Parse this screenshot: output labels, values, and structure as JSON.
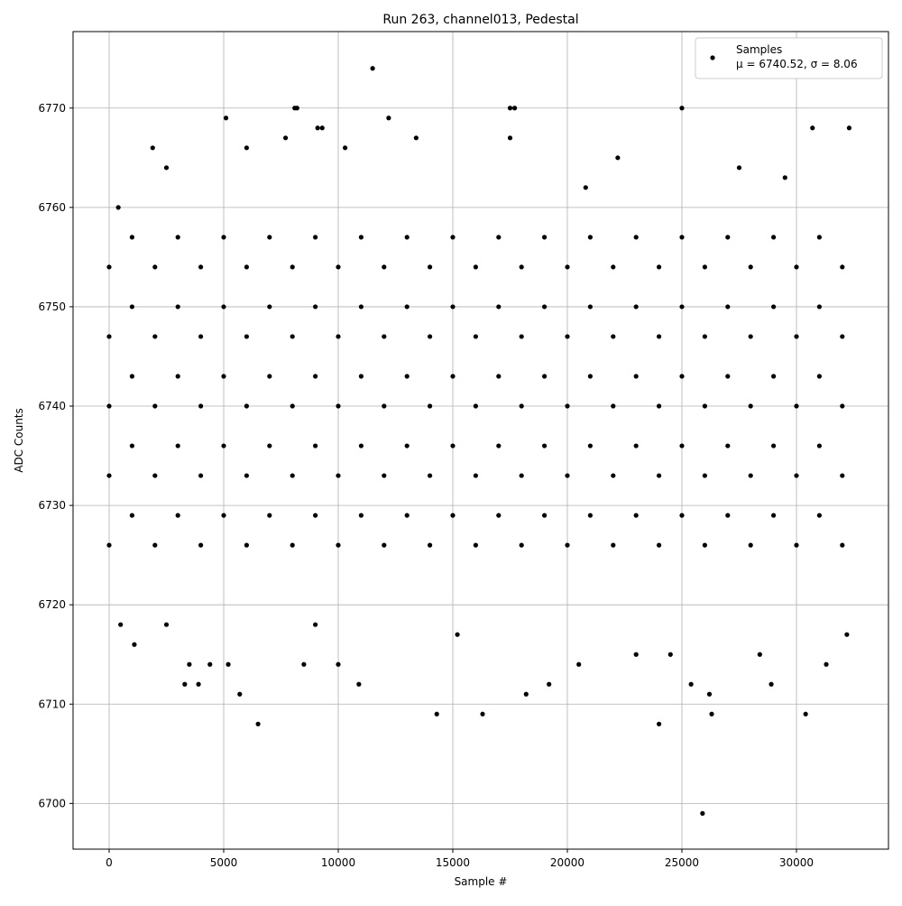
{
  "chart_data": {
    "type": "scatter",
    "title": "Run 263, channel013, Pedestal",
    "xlabel": "Sample #",
    "ylabel": "ADC Counts",
    "legend_loc": "upper right",
    "legend_note": "μ = 6740.52, σ = 8.06",
    "grid": true,
    "xlim": [
      -1575,
      34016
    ],
    "ylim": [
      6695.4,
      6777.7
    ],
    "xticks": [
      0,
      5000,
      10000,
      15000,
      20000,
      25000,
      30000
    ],
    "yticks": [
      6700,
      6710,
      6720,
      6730,
      6740,
      6750,
      6760,
      6770
    ],
    "series": [
      {
        "name": "Samples",
        "color": "#000000",
        "x": [
          5100,
          8100,
          8200,
          11500,
          12200,
          17500,
          17700,
          25000,
          32300,
          30700,
          9100,
          9300,
          7700,
          13400,
          17500,
          1900,
          22200,
          6500,
          14300,
          16300,
          24000,
          25900,
          26300,
          30400,
          5700,
          3300,
          3900,
          10900,
          18200,
          19200,
          28900,
          25400,
          3500,
          4400,
          5200,
          8500,
          10000,
          20500,
          31300,
          1100,
          26200,
          400,
          2500,
          6000,
          10300,
          20800,
          27500,
          29500,
          500,
          2500,
          9000,
          15200,
          23000,
          24500,
          28400,
          32200,
          0,
          0,
          0,
          0,
          0,
          1000,
          1000,
          1000,
          1000,
          1000,
          2000,
          2000,
          2000,
          2000,
          2000,
          3000,
          3000,
          3000,
          3000,
          3000,
          4000,
          4000,
          4000,
          4000,
          4000,
          5000,
          5000,
          5000,
          5000,
          5000,
          6000,
          6000,
          6000,
          6000,
          6000,
          7000,
          7000,
          7000,
          7000,
          7000,
          8000,
          8000,
          8000,
          8000,
          8000,
          9000,
          9000,
          9000,
          9000,
          9000,
          10000,
          10000,
          10000,
          10000,
          10000,
          11000,
          11000,
          11000,
          11000,
          11000,
          12000,
          12000,
          12000,
          12000,
          12000,
          13000,
          13000,
          13000,
          13000,
          13000,
          14000,
          14000,
          14000,
          14000,
          14000,
          15000,
          15000,
          15000,
          15000,
          15000,
          16000,
          16000,
          16000,
          16000,
          16000,
          17000,
          17000,
          17000,
          17000,
          17000,
          18000,
          18000,
          18000,
          18000,
          18000,
          19000,
          19000,
          19000,
          19000,
          19000,
          20000,
          20000,
          20000,
          20000,
          20000,
          21000,
          21000,
          21000,
          21000,
          21000,
          22000,
          22000,
          22000,
          22000,
          22000,
          23000,
          23000,
          23000,
          23000,
          23000,
          24000,
          24000,
          24000,
          24000,
          24000,
          25000,
          25000,
          25000,
          25000,
          25000,
          26000,
          26000,
          26000,
          26000,
          26000,
          27000,
          27000,
          27000,
          27000,
          27000,
          28000,
          28000,
          28000,
          28000,
          28000,
          29000,
          29000,
          29000,
          29000,
          29000,
          30000,
          30000,
          30000,
          30000,
          30000,
          31000,
          31000,
          31000,
          31000,
          31000,
          32000,
          32000,
          32000,
          32000,
          32000
        ],
        "values": [
          6769,
          6770,
          6770,
          6774,
          6769,
          6770,
          6770,
          6770,
          6768,
          6768,
          6768,
          6768,
          6767,
          6767,
          6767,
          6766,
          6765,
          6708,
          6709,
          6709,
          6708,
          6699,
          6709,
          6709,
          6711,
          6712,
          6712,
          6712,
          6711,
          6712,
          6712,
          6712,
          6714,
          6714,
          6714,
          6714,
          6714,
          6714,
          6714,
          6716,
          6711,
          6760,
          6764,
          6766,
          6766,
          6762,
          6764,
          6763,
          6718,
          6718,
          6718,
          6717,
          6715,
          6715,
          6715,
          6717,
          6726,
          6733,
          6740,
          6747,
          6754,
          6729,
          6736,
          6743,
          6750,
          6757,
          6726,
          6733,
          6740,
          6747,
          6754,
          6729,
          6736,
          6743,
          6750,
          6757,
          6726,
          6733,
          6740,
          6747,
          6754,
          6729,
          6736,
          6743,
          6750,
          6757,
          6726,
          6733,
          6740,
          6747,
          6754,
          6729,
          6736,
          6743,
          6750,
          6757,
          6726,
          6733,
          6740,
          6747,
          6754,
          6729,
          6736,
          6743,
          6750,
          6757,
          6726,
          6733,
          6740,
          6747,
          6754,
          6729,
          6736,
          6743,
          6750,
          6757,
          6726,
          6733,
          6740,
          6747,
          6754,
          6729,
          6736,
          6743,
          6750,
          6757,
          6726,
          6733,
          6740,
          6747,
          6754,
          6729,
          6736,
          6743,
          6750,
          6757,
          6726,
          6733,
          6740,
          6747,
          6754,
          6729,
          6736,
          6743,
          6750,
          6757,
          6726,
          6733,
          6740,
          6747,
          6754,
          6729,
          6736,
          6743,
          6750,
          6757,
          6726,
          6733,
          6740,
          6747,
          6754,
          6729,
          6736,
          6743,
          6750,
          6757,
          6726,
          6733,
          6740,
          6747,
          6754,
          6729,
          6736,
          6743,
          6750,
          6757,
          6726,
          6733,
          6740,
          6747,
          6754,
          6729,
          6736,
          6743,
          6750,
          6757,
          6726,
          6733,
          6740,
          6747,
          6754,
          6729,
          6736,
          6743,
          6750,
          6757,
          6726,
          6733,
          6740,
          6747,
          6754,
          6729,
          6736,
          6743,
          6750,
          6757,
          6726,
          6733,
          6740,
          6747,
          6754,
          6729,
          6736,
          6743,
          6750,
          6757,
          6726,
          6733,
          6740,
          6747,
          6754
        ]
      }
    ]
  }
}
